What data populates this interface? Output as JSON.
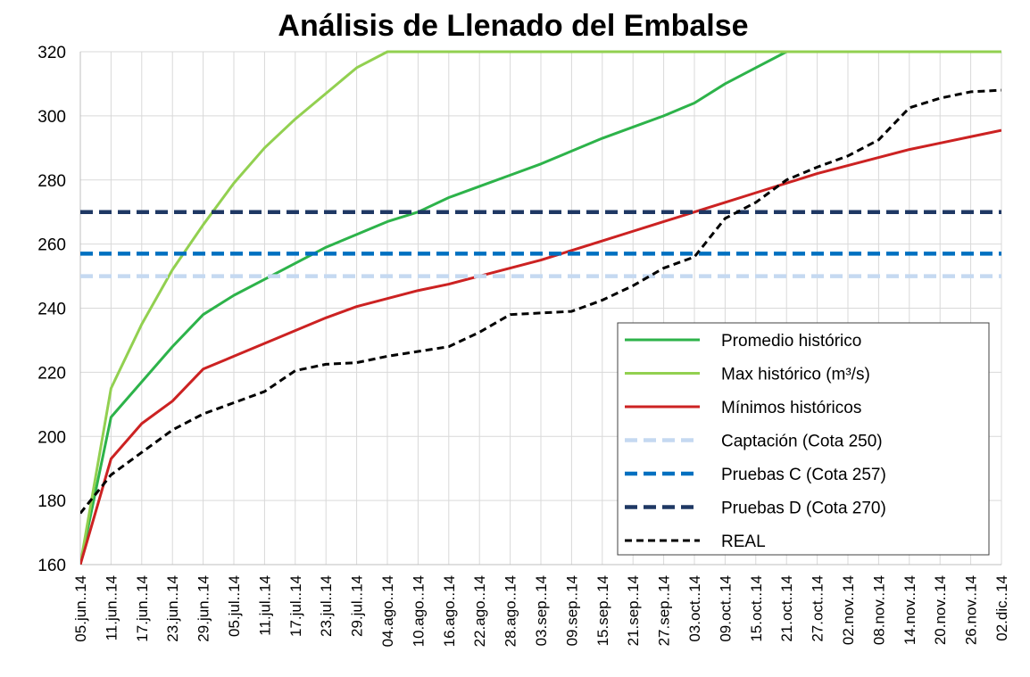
{
  "chart_data": {
    "type": "line",
    "title": "Análisis de Llenado del Embalse",
    "categories": [
      "05.jun..14",
      "11.jun..14",
      "17.jun..14",
      "23.jun..14",
      "29.jun..14",
      "05.jul..14",
      "11.jul..14",
      "17.jul..14",
      "23.jul..14",
      "29.jul..14",
      "04.ago..14",
      "10.ago..14",
      "16.ago..14",
      "22.ago..14",
      "28.ago..14",
      "03.sep..14",
      "09.sep..14",
      "15.sep..14",
      "21.sep..14",
      "27.sep..14",
      "03.oct..14",
      "09.oct..14",
      "15.oct..14",
      "21.oct..14",
      "27.oct..14",
      "02.nov..14",
      "08.nov..14",
      "14.nov..14",
      "20.nov..14",
      "26.nov..14",
      "02.dic..14"
    ],
    "series": [
      {
        "name": "Promedio histórico",
        "color": "#2db34a",
        "style": "solid",
        "values": [
          160,
          206,
          217,
          228,
          238,
          244,
          249,
          254,
          259,
          263,
          267,
          270,
          274.5,
          278,
          281.5,
          285,
          289,
          293,
          296.5,
          300,
          304,
          310,
          315,
          320,
          320,
          320,
          320,
          320,
          320,
          320,
          320
        ]
      },
      {
        "name": "Max histórico (m³/s)",
        "color": "#92d050",
        "style": "solid",
        "values": [
          160,
          215,
          235,
          252,
          266,
          279,
          290,
          299,
          307,
          315,
          320,
          320,
          320,
          320,
          320,
          320,
          320,
          320,
          320,
          320,
          320,
          320,
          320,
          320,
          320,
          320,
          320,
          320,
          320,
          320,
          320
        ]
      },
      {
        "name": "Mínimos históricos",
        "color": "#cc2222",
        "style": "solid",
        "values": [
          160,
          193,
          204,
          211,
          221,
          225,
          229,
          233,
          237,
          240.5,
          243,
          245.5,
          247.5,
          250,
          252.5,
          255,
          258,
          261,
          264,
          267,
          270,
          273,
          276,
          279,
          282,
          284.5,
          287,
          289.5,
          291.5,
          293.5,
          295.5
        ]
      },
      {
        "name": "Captación (Cota 250)",
        "color": "#c5d9f1",
        "style": "dashed",
        "values": [
          250,
          250,
          250,
          250,
          250,
          250,
          250,
          250,
          250,
          250,
          250,
          250,
          250,
          250,
          250,
          250,
          250,
          250,
          250,
          250,
          250,
          250,
          250,
          250,
          250,
          250,
          250,
          250,
          250,
          250,
          250
        ]
      },
      {
        "name": "Pruebas C (Cota 257)",
        "color": "#0070c0",
        "style": "dashed",
        "values": [
          257,
          257,
          257,
          257,
          257,
          257,
          257,
          257,
          257,
          257,
          257,
          257,
          257,
          257,
          257,
          257,
          257,
          257,
          257,
          257,
          257,
          257,
          257,
          257,
          257,
          257,
          257,
          257,
          257,
          257,
          257
        ]
      },
      {
        "name": "Pruebas D (Cota 270)",
        "color": "#1f3864",
        "style": "dashed",
        "values": [
          270,
          270,
          270,
          270,
          270,
          270,
          270,
          270,
          270,
          270,
          270,
          270,
          270,
          270,
          270,
          270,
          270,
          270,
          270,
          270,
          270,
          270,
          270,
          270,
          270,
          270,
          270,
          270,
          270,
          270,
          270
        ]
      },
      {
        "name": "REAL",
        "color": "#000000",
        "style": "dotted",
        "values": [
          176,
          188,
          195,
          202,
          207,
          210.5,
          214,
          220.5,
          222.5,
          223,
          225,
          226.5,
          228,
          232.5,
          238,
          238.5,
          239,
          242.5,
          247,
          252.5,
          256,
          268,
          273,
          280,
          284,
          287.5,
          292.5,
          302.5,
          305.5,
          307.5,
          308
        ]
      }
    ],
    "ylim": [
      160,
      320
    ],
    "yticks": [
      160,
      180,
      200,
      220,
      240,
      260,
      280,
      300,
      320
    ],
    "grid": true,
    "legend": "lower right"
  }
}
